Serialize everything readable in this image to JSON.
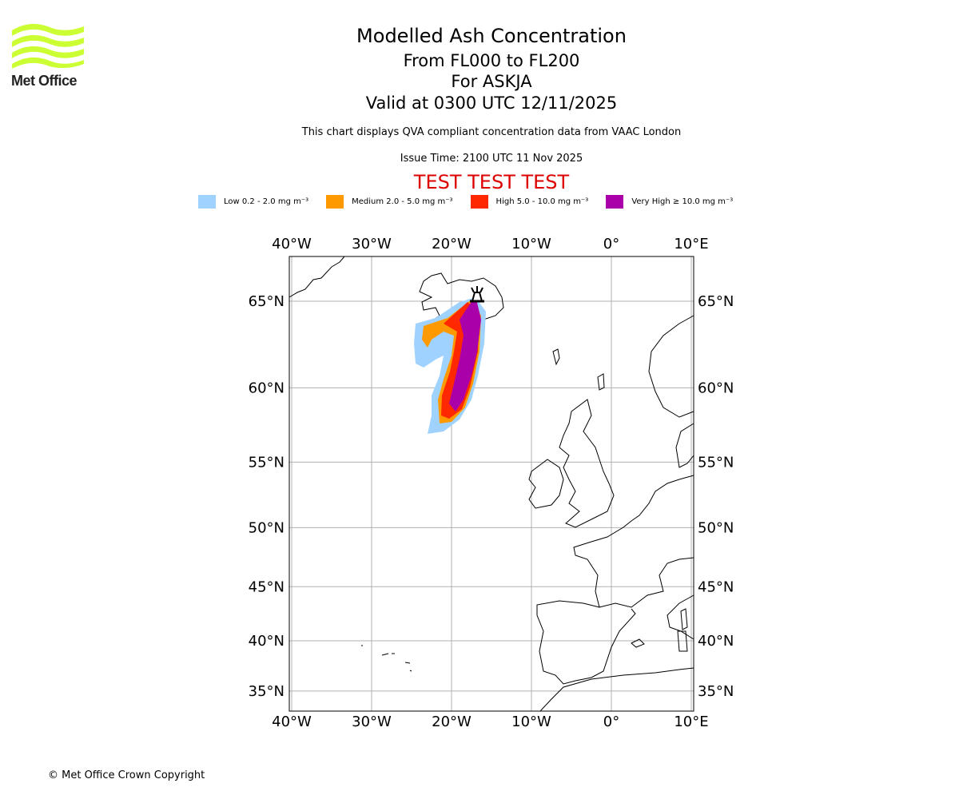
{
  "logo": {
    "text": "Met Office",
    "color": "#ccff33"
  },
  "title": {
    "line1": "Modelled Ash Concentration",
    "line2": "From FL000 to FL200",
    "line3": "For ASKJA",
    "line4": "Valid at 0300 UTC 12/11/2025"
  },
  "subtitle": "This chart displays QVA compliant concentration data from VAAC London",
  "issue_time": "Issue Time: 2100 UTC 11 Nov 2025",
  "test_banner": "TEST TEST TEST",
  "test_color": "#dd0000",
  "legend": [
    {
      "label": "Low 0.2 - 2.0 mg m⁻³",
      "color": "#a0d2ff"
    },
    {
      "label": "Medium 2.0 - 5.0 mg m⁻³",
      "color": "#ff9900"
    },
    {
      "label": "High 5.0 - 10.0 mg m⁻³",
      "color": "#ff2800"
    },
    {
      "label": "Very High ≥ 10.0 mg m⁻³",
      "color": "#aa00aa"
    }
  ],
  "map": {
    "lon_range": [
      -40,
      10
    ],
    "lat_range": [
      33.5,
      68
    ],
    "lon_ticks": [
      {
        "value": -40,
        "label": "40°W"
      },
      {
        "value": -30,
        "label": "30°W"
      },
      {
        "value": -20,
        "label": "20°W"
      },
      {
        "value": -10,
        "label": "10°W"
      },
      {
        "value": 0,
        "label": "0°"
      },
      {
        "value": 10,
        "label": "10°E"
      }
    ],
    "lat_ticks": [
      {
        "value": 65,
        "label": "65°N"
      },
      {
        "value": 60,
        "label": "60°N"
      },
      {
        "value": 55,
        "label": "55°N"
      },
      {
        "value": 50,
        "label": "50°N"
      },
      {
        "value": 45,
        "label": "45°N"
      },
      {
        "value": 40,
        "label": "40°N"
      },
      {
        "value": 35,
        "label": "35°N"
      }
    ],
    "volcano": {
      "name": "ASKJA",
      "lat": 65.03,
      "lon": -16.75
    }
  },
  "copyright": "© Met Office Crown Copyright"
}
